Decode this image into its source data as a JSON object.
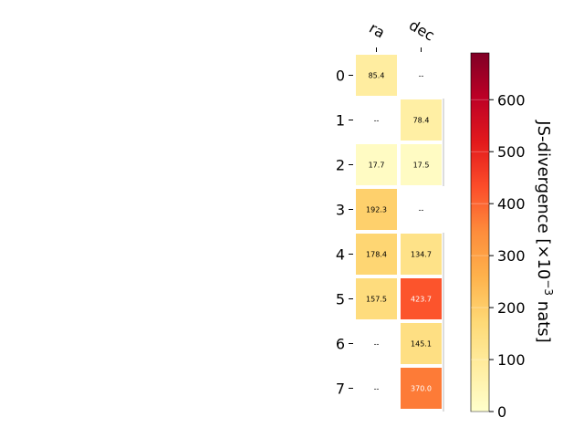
{
  "chart_data": {
    "type": "heatmap",
    "x_categories": [
      "ra",
      "dec"
    ],
    "y_categories": [
      "0",
      "1",
      "2",
      "3",
      "4",
      "5",
      "6",
      "7"
    ],
    "values": [
      [
        85.4,
        null
      ],
      [
        null,
        78.4
      ],
      [
        17.7,
        17.5
      ],
      [
        192.3,
        null
      ],
      [
        178.4,
        134.7
      ],
      [
        157.5,
        423.7
      ],
      [
        null,
        145.1
      ],
      [
        null,
        370.0
      ]
    ],
    "cell_labels": [
      [
        "85.4",
        "--"
      ],
      [
        "--",
        "78.4"
      ],
      [
        "17.7",
        "17.5"
      ],
      [
        "192.3",
        "--"
      ],
      [
        "178.4",
        "134.7"
      ],
      [
        "157.5",
        "423.7"
      ],
      [
        "--",
        "145.1"
      ],
      [
        "--",
        "370.0"
      ]
    ],
    "colorbar": {
      "label": "JS-divergence [×10",
      "label_exponent": "−3",
      "label_suffix": " nats]",
      "range": [
        0,
        690
      ],
      "ticks": [
        0,
        100,
        200,
        300,
        400,
        500,
        600
      ],
      "tick_labels": [
        "0",
        "100",
        "200",
        "300",
        "400",
        "500",
        "600"
      ],
      "colormap": "YlOrRd"
    },
    "grid": false
  }
}
